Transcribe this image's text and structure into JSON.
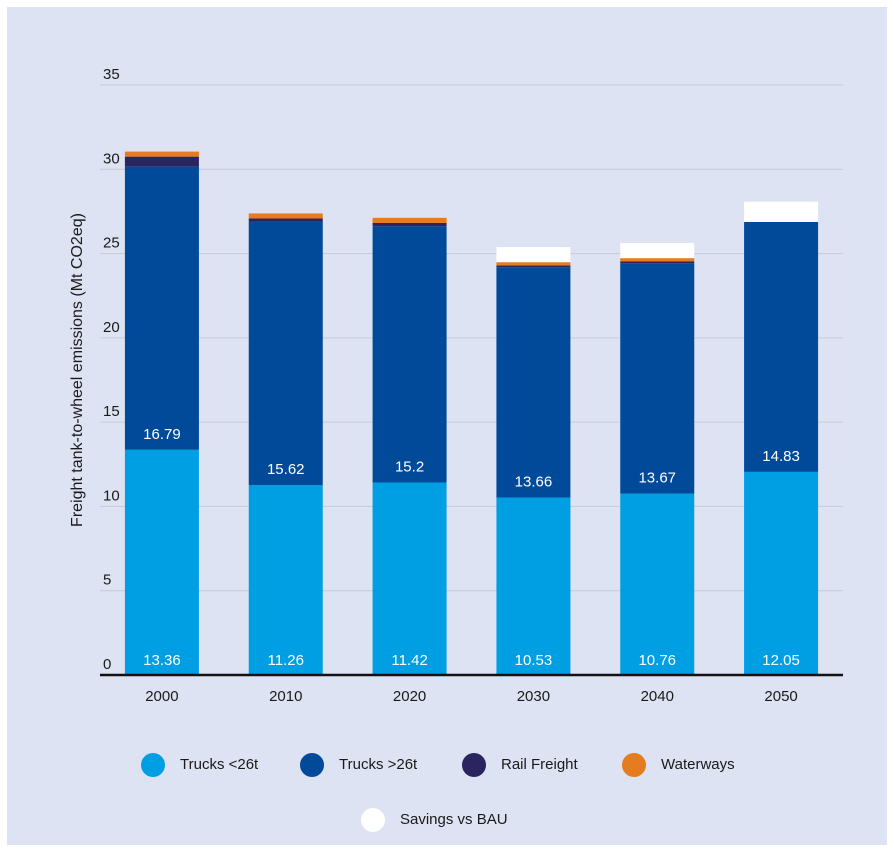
{
  "chart_data": {
    "type": "stacked-bar",
    "y_label": "Freight tank-to-wheel emissions (Mt CO2eq)",
    "categories": [
      "2000",
      "2010",
      "2020",
      "2030",
      "2040",
      "2050"
    ],
    "ylim": [
      0,
      35
    ],
    "yticks": [
      0,
      5,
      10,
      15,
      20,
      25,
      30,
      35
    ],
    "grid": true,
    "series": [
      {
        "name": "Trucks <26t",
        "color": "#009fe3",
        "values": [
          13.36,
          11.26,
          11.42,
          10.53,
          10.76,
          12.05
        ],
        "show_labels": true
      },
      {
        "name": "Trucks >26t",
        "color": "#004a99",
        "values": [
          16.79,
          15.62,
          15.2,
          13.66,
          13.67,
          14.83
        ],
        "show_labels": true
      },
      {
        "name": "Rail Freight",
        "color": "#2a2560",
        "values": [
          0.6,
          0.2,
          0.2,
          0.1,
          0.1,
          0
        ]
      },
      {
        "name": "Waterways",
        "color": "#e57c1f",
        "values": [
          0.3,
          0.3,
          0.3,
          0.2,
          0.2,
          0
        ]
      },
      {
        "name": "Savings vs BAU",
        "color": "#ffffff",
        "values": [
          0,
          0,
          0,
          0.9,
          0.9,
          1.2
        ]
      }
    ]
  }
}
